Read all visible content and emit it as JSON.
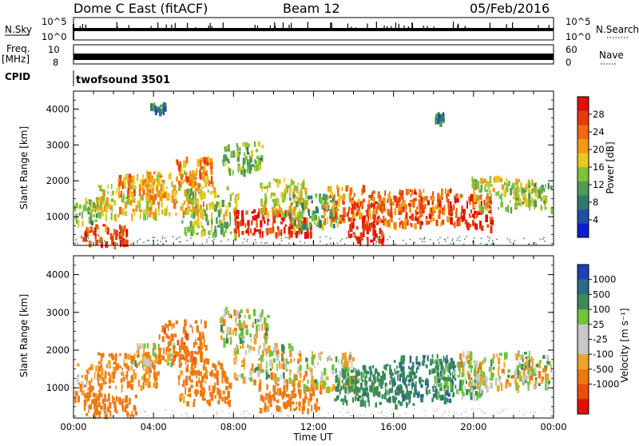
{
  "header": {
    "station": "Dome C East (fitACF)",
    "beam": "Beam 12",
    "date": "05/Feb/2016"
  },
  "top_panels": {
    "nsky_label": "N.Sky",
    "nsky_ticks": [
      "10^5",
      "10^0"
    ],
    "nsearch_label": "N.Search",
    "nsearch_ticks": [
      "10^5",
      "10^0"
    ],
    "freq_label": "Freq.",
    "freq_unit": "[MHz]",
    "freq_ticks": [
      "10",
      "8"
    ],
    "nave_label": "Nave",
    "nave_ticks": [
      "60",
      "0"
    ],
    "cpid_label": "CPID",
    "cpid_value": "twofsound 3501"
  },
  "colors": {
    "power_scale": [
      "#0a1fd4",
      "#1f4fa8",
      "#2f7a6a",
      "#4f9a58",
      "#7cc23a",
      "#e8c81e",
      "#f29a12",
      "#f06a10",
      "#e63c0a",
      "#e01008"
    ],
    "velocity_scale": [
      "#1f3fb4",
      "#2a6b86",
      "#3a8a5a",
      "#6fc43a",
      "#c8c8c8",
      "#c8c8c8",
      "#f0a428",
      "#ef7a12",
      "#eb4d0a",
      "#e41008"
    ],
    "scatter_fill": "#2a2a2a"
  },
  "chart_data": [
    {
      "type": "heatmap",
      "name": "power",
      "ylabel": "Slant Range [km]",
      "ylim": [
        200,
        4500
      ],
      "yticks": [
        "4000",
        "3000",
        "2000",
        "1000"
      ],
      "xlabel": "",
      "xlim": [
        "00:00",
        "24:00"
      ],
      "colorbar_label": "Power [dB]",
      "colorbar_ticks": [
        "28",
        "24",
        "20",
        "16",
        "12",
        "8",
        "4"
      ],
      "colorbar_range": [
        0,
        32
      ],
      "blobs": [
        {
          "t": 0.5,
          "r": 1200,
          "w": 0.8,
          "h": 350,
          "v": 14
        },
        {
          "t": 1.5,
          "r": 550,
          "w": 1.2,
          "h": 250,
          "v": 26
        },
        {
          "t": 2.5,
          "r": 1500,
          "w": 1.4,
          "h": 450,
          "v": 18
        },
        {
          "t": 3.2,
          "r": 1900,
          "w": 1.0,
          "h": 300,
          "v": 22
        },
        {
          "t": 4.2,
          "r": 4100,
          "w": 0.4,
          "h": 90,
          "v": 8
        },
        {
          "t": 5.0,
          "r": 1700,
          "w": 1.5,
          "h": 600,
          "v": 20
        },
        {
          "t": 6.0,
          "r": 2300,
          "w": 0.9,
          "h": 400,
          "v": 22
        },
        {
          "t": 6.8,
          "r": 1200,
          "w": 1.4,
          "h": 650,
          "v": 15
        },
        {
          "t": 8.4,
          "r": 2700,
          "w": 1.0,
          "h": 400,
          "v": 13
        },
        {
          "t": 9.5,
          "r": 900,
          "w": 1.5,
          "h": 350,
          "v": 29
        },
        {
          "t": 10.5,
          "r": 1600,
          "w": 1.2,
          "h": 500,
          "v": 18
        },
        {
          "t": 11.2,
          "r": 800,
          "w": 0.7,
          "h": 250,
          "v": 30
        },
        {
          "t": 12.0,
          "r": 1200,
          "w": 1.2,
          "h": 450,
          "v": 12
        },
        {
          "t": 13.5,
          "r": 1400,
          "w": 1.0,
          "h": 500,
          "v": 22
        },
        {
          "t": 14.6,
          "r": 900,
          "w": 0.9,
          "h": 550,
          "v": 30
        },
        {
          "t": 16.0,
          "r": 1300,
          "w": 1.4,
          "h": 500,
          "v": 24
        },
        {
          "t": 17.5,
          "r": 1300,
          "w": 1.3,
          "h": 500,
          "v": 25
        },
        {
          "t": 18.3,
          "r": 3800,
          "w": 0.25,
          "h": 120,
          "v": 8
        },
        {
          "t": 19.8,
          "r": 1200,
          "w": 1.1,
          "h": 450,
          "v": 28
        },
        {
          "t": 21.5,
          "r": 1700,
          "w": 1.6,
          "h": 450,
          "v": 16
        },
        {
          "t": 23.0,
          "r": 1600,
          "w": 1.0,
          "h": 350,
          "v": 14
        }
      ]
    },
    {
      "type": "heatmap",
      "name": "velocity",
      "ylabel": "Slant Range [km]",
      "ylim": [
        200,
        4500
      ],
      "yticks": [
        "4000",
        "3000",
        "2000",
        "1000"
      ],
      "xlabel": "Time UT",
      "xlim": [
        "00:00",
        "24:00"
      ],
      "xticks": [
        "00:00",
        "04:00",
        "08:00",
        "12:00",
        "16:00",
        "20:00",
        "00:00"
      ],
      "colorbar_label": "Velocity [m s⁻¹]",
      "colorbar_ticks": [
        "1000",
        "500",
        "100",
        "25",
        "-25",
        "-100",
        "-500",
        "-1000"
      ],
      "blobs": [
        {
          "t": 0.6,
          "r": 1200,
          "w": 0.9,
          "h": 450,
          "v": -120
        },
        {
          "t": 1.8,
          "r": 600,
          "w": 1.3,
          "h": 300,
          "v": -300
        },
        {
          "t": 2.7,
          "r": 1500,
          "w": 1.5,
          "h": 450,
          "v": -150
        },
        {
          "t": 4.0,
          "r": 1900,
          "w": 1.0,
          "h": 300,
          "v": 0
        },
        {
          "t": 5.4,
          "r": 2300,
          "w": 1.2,
          "h": 550,
          "v": -400
        },
        {
          "t": 6.5,
          "r": 1200,
          "w": 1.3,
          "h": 600,
          "v": -200
        },
        {
          "t": 8.5,
          "r": 2700,
          "w": 1.2,
          "h": 450,
          "v": 0
        },
        {
          "t": 9.5,
          "r": 1700,
          "w": 1.5,
          "h": 500,
          "v": 0
        },
        {
          "t": 10.8,
          "r": 800,
          "w": 1.6,
          "h": 350,
          "v": -300
        },
        {
          "t": 12.5,
          "r": 1500,
          "w": 1.5,
          "h": 500,
          "v": 0
        },
        {
          "t": 14.0,
          "r": 1100,
          "w": 1.0,
          "h": 450,
          "v": 200
        },
        {
          "t": 15.5,
          "r": 1100,
          "w": 1.5,
          "h": 550,
          "v": 400
        },
        {
          "t": 17.5,
          "r": 1300,
          "w": 1.5,
          "h": 600,
          "v": 500
        },
        {
          "t": 19.2,
          "r": 1300,
          "w": 1.2,
          "h": 500,
          "v": 120
        },
        {
          "t": 21.0,
          "r": 1500,
          "w": 1.8,
          "h": 500,
          "v": 0
        },
        {
          "t": 23.0,
          "r": 1500,
          "w": 1.0,
          "h": 400,
          "v": 0
        }
      ]
    }
  ]
}
